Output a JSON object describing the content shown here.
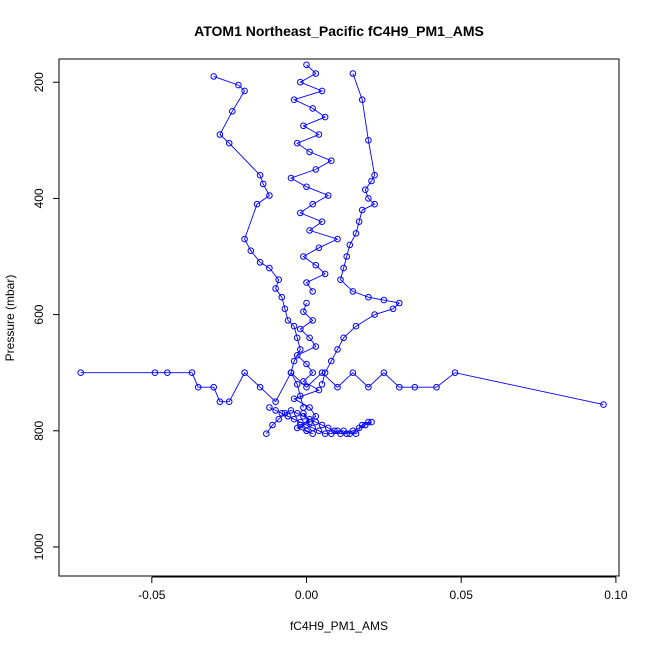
{
  "chart_data": {
    "type": "scatter",
    "title": "ATOM1 Northeast_Pacific fC4H9_PM1_AMS",
    "xlabel": "fC4H9_PM1_AMS",
    "ylabel": "Pressure (mbar)",
    "xlim": [
      -0.08,
      0.101
    ],
    "ylim": [
      1050,
      160
    ],
    "y_reversed": true,
    "x_ticks": [
      -0.05,
      0.0,
      0.05,
      0.1
    ],
    "x_tick_labels": [
      "-0.05",
      "0.00",
      "0.05",
      "0.10"
    ],
    "y_ticks": [
      200,
      400,
      600,
      800,
      1000
    ],
    "y_tick_labels": [
      "200",
      "400",
      "600",
      "800",
      "1000"
    ],
    "grid": false,
    "legend": "none",
    "marker": "open-circle",
    "connected": true,
    "colors": {
      "series": "#0000ff",
      "axis": "#000000"
    },
    "series": [
      {
        "x": [
          0.0,
          0.003,
          -0.002,
          0.005,
          -0.004,
          0.002,
          0.006,
          -0.001,
          0.004,
          -0.003,
          0.001,
          0.008,
          0.003,
          -0.005,
          0.0,
          0.007,
          0.002,
          -0.002,
          0.005,
          0.001,
          0.01,
          0.004,
          -0.001,
          0.003,
          0.006,
          0.0,
          0.002
        ],
        "y": [
          170,
          185,
          200,
          215,
          230,
          245,
          260,
          275,
          290,
          305,
          320,
          335,
          350,
          365,
          380,
          395,
          410,
          425,
          440,
          455,
          470,
          485,
          500,
          515,
          530,
          545,
          560
        ]
      },
      {
        "x": [
          -0.03,
          -0.022,
          -0.02,
          -0.024,
          -0.028,
          -0.025,
          -0.015,
          -0.014,
          -0.012,
          -0.016,
          -0.02,
          -0.018,
          -0.015,
          -0.012,
          -0.009,
          -0.01,
          -0.008,
          -0.007,
          -0.006,
          -0.004,
          -0.003,
          -0.002,
          -0.004,
          -0.005,
          -0.003,
          -0.002,
          -0.001
        ],
        "y": [
          190,
          205,
          215,
          250,
          290,
          305,
          360,
          375,
          395,
          410,
          470,
          490,
          510,
          520,
          540,
          555,
          570,
          590,
          610,
          620,
          640,
          660,
          680,
          700,
          720,
          740,
          760
        ]
      },
      {
        "x": [
          0.015,
          0.018,
          0.02,
          0.022,
          0.021,
          0.019,
          0.02,
          0.022,
          0.018,
          0.017,
          0.016,
          0.014,
          0.013,
          0.012,
          0.011,
          0.015,
          0.02,
          0.025,
          0.03,
          0.028,
          0.022,
          0.016,
          0.012,
          0.01,
          0.008,
          0.006,
          0.005
        ],
        "y": [
          185,
          230,
          300,
          360,
          370,
          385,
          400,
          410,
          420,
          440,
          460,
          480,
          500,
          520,
          540,
          560,
          570,
          575,
          580,
          590,
          600,
          620,
          640,
          660,
          680,
          700,
          720
        ]
      },
      {
        "x": [
          -0.073,
          -0.049,
          -0.045,
          -0.037,
          -0.035,
          -0.03,
          -0.028,
          -0.025,
          -0.02,
          -0.015,
          -0.01,
          -0.005,
          0.0,
          0.005,
          0.01,
          0.015,
          0.02,
          0.025,
          0.03,
          0.035,
          0.042,
          0.048,
          0.096
        ],
        "y": [
          700,
          700,
          700,
          700,
          725,
          725,
          750,
          750,
          700,
          725,
          750,
          700,
          725,
          700,
          725,
          700,
          725,
          700,
          725,
          725,
          725,
          700,
          755
        ]
      },
      {
        "x": [
          -0.012,
          -0.01,
          -0.008,
          -0.006,
          -0.004,
          -0.002,
          0.0,
          0.002,
          0.004,
          0.006,
          0.008,
          0.01,
          0.012,
          0.014,
          0.016,
          0.018,
          0.02,
          0.021,
          0.019,
          0.017,
          0.015,
          0.013,
          0.011,
          0.009,
          0.007,
          0.005,
          0.003,
          0.001,
          -0.001,
          -0.003,
          -0.005,
          -0.007,
          -0.009,
          -0.011,
          -0.013
        ],
        "y": [
          760,
          765,
          770,
          775,
          780,
          785,
          790,
          795,
          800,
          805,
          805,
          800,
          800,
          805,
          805,
          790,
          785,
          785,
          790,
          795,
          800,
          805,
          805,
          800,
          795,
          790,
          785,
          780,
          775,
          770,
          765,
          770,
          780,
          790,
          805
        ]
      },
      {
        "x": [
          0.0,
          -0.001,
          0.002,
          -0.002,
          0.001,
          0.003,
          -0.003,
          0.0,
          0.002,
          -0.001,
          0.004,
          -0.004,
          0.001,
          0.003,
          -0.002,
          0.0,
          0.002,
          -0.003,
          0.001,
          -0.001
        ],
        "y": [
          580,
          595,
          610,
          625,
          640,
          655,
          670,
          685,
          700,
          715,
          730,
          745,
          760,
          775,
          790,
          800,
          805,
          795,
          785,
          770
        ]
      }
    ]
  }
}
